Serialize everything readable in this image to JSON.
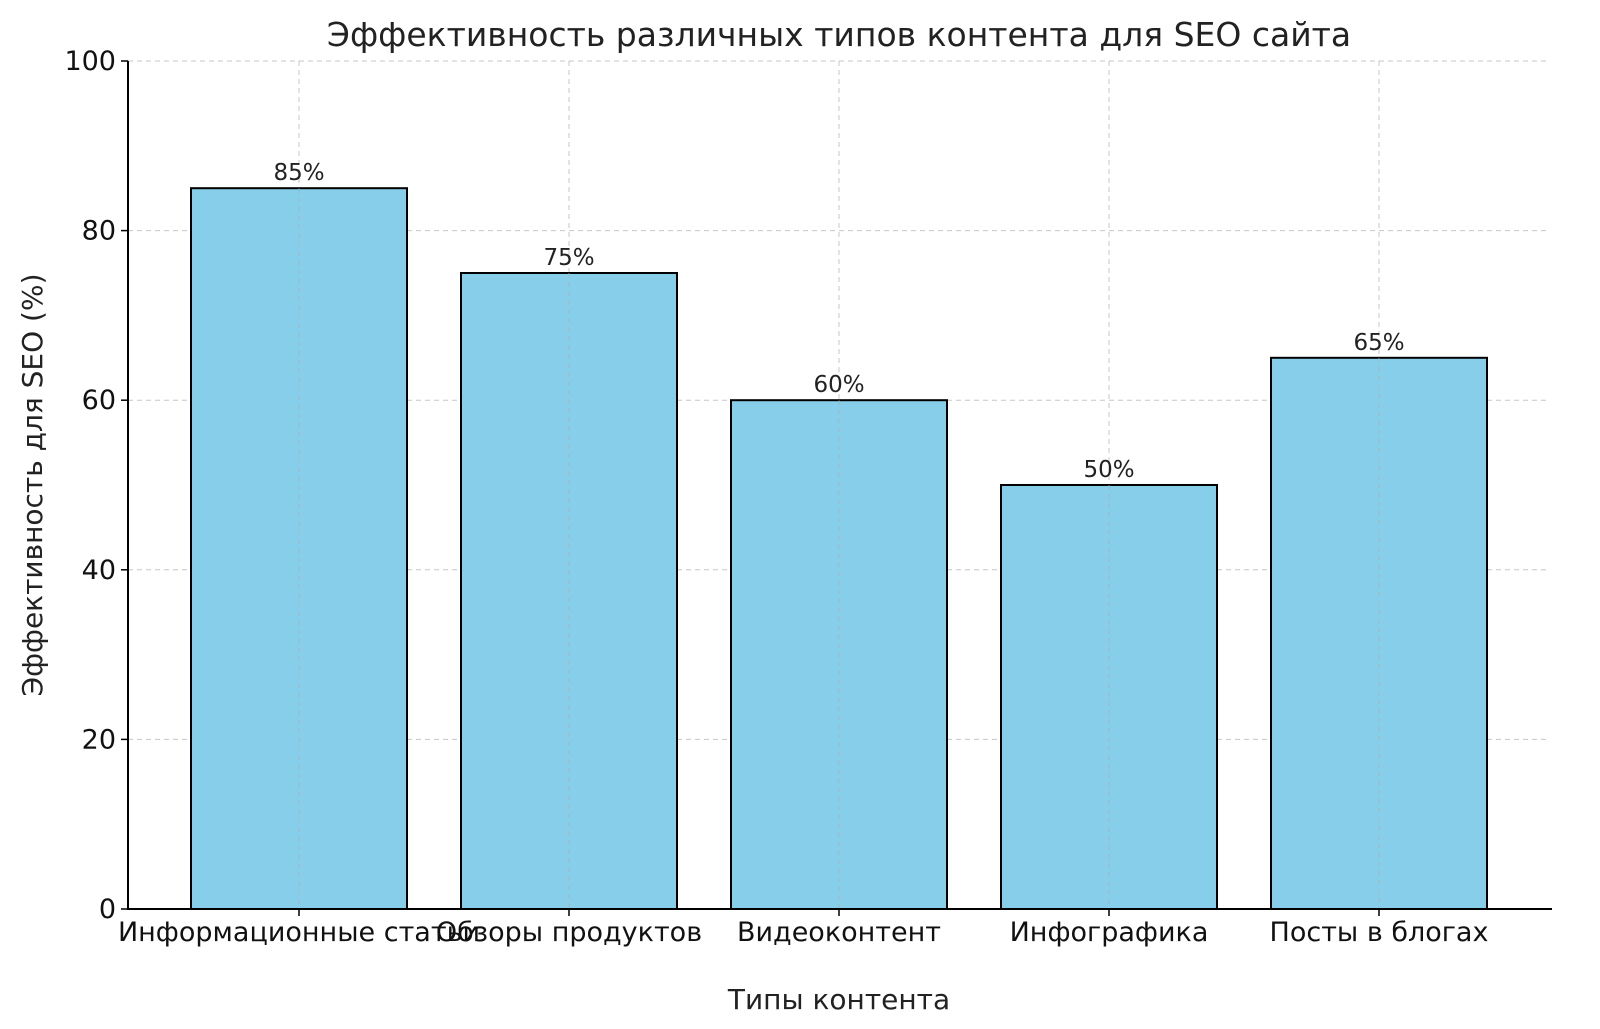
{
  "chart_data": {
    "type": "bar",
    "title": "Эффективность различных типов контента для SEO сайта",
    "xlabel": "Типы контента",
    "ylabel": "Эффективность для SEO (%)",
    "categories": [
      "Информационные статьи",
      "Обзоры продуктов",
      "Видеоконтент",
      "Инфографика",
      "Посты в блогах"
    ],
    "values": [
      85,
      75,
      60,
      50,
      65
    ],
    "data_labels": [
      "85%",
      "75%",
      "60%",
      "50%",
      "65%"
    ],
    "ylim": [
      0,
      100
    ],
    "yticks": [
      0,
      20,
      40,
      60,
      80,
      100
    ],
    "grid": true,
    "bar_color": "#87CEEB",
    "edge_color": "#000000"
  }
}
